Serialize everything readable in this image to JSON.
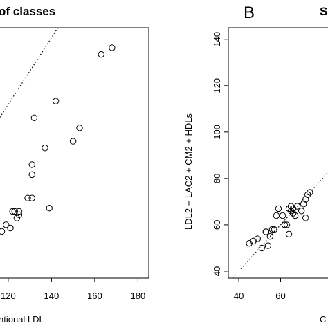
{
  "chart_data": [
    {
      "panel_letter": "",
      "type": "scatter",
      "title": "of classes",
      "xlabel": "ntional LDL",
      "ylabel": "",
      "xlim": [
        113,
        185
      ],
      "ylim": [
        68,
        143
      ],
      "xticks": [
        120,
        140,
        160,
        180
      ],
      "yticks": [],
      "grid": false,
      "reference_line": "dotted y = x",
      "points": [
        {
          "x": 113,
          "y": 77
        },
        {
          "x": 114,
          "y": 79
        },
        {
          "x": 117,
          "y": 82
        },
        {
          "x": 119,
          "y": 84
        },
        {
          "x": 121,
          "y": 83
        },
        {
          "x": 122,
          "y": 88
        },
        {
          "x": 123,
          "y": 88
        },
        {
          "x": 124,
          "y": 86
        },
        {
          "x": 125,
          "y": 87
        },
        {
          "x": 125,
          "y": 88
        },
        {
          "x": 129,
          "y": 92
        },
        {
          "x": 131,
          "y": 92
        },
        {
          "x": 131,
          "y": 99
        },
        {
          "x": 131,
          "y": 102
        },
        {
          "x": 132,
          "y": 116
        },
        {
          "x": 137,
          "y": 107
        },
        {
          "x": 139,
          "y": 89
        },
        {
          "x": 142,
          "y": 121
        },
        {
          "x": 150,
          "y": 109
        },
        {
          "x": 153,
          "y": 113
        },
        {
          "x": 163,
          "y": 135
        },
        {
          "x": 168,
          "y": 137
        }
      ]
    },
    {
      "panel_letter": "B",
      "type": "scatter",
      "title": "S",
      "xlabel": "C",
      "ylabel": "LDL2 + LAC2 + CM2 + HDLs",
      "xlim": [
        35,
        88
      ],
      "ylim": [
        37,
        145
      ],
      "xticks": [
        40,
        60
      ],
      "yticks": [
        40,
        60,
        80,
        100,
        120,
        140
      ],
      "grid": false,
      "reference_line": "dotted y = x",
      "points": [
        {
          "x": 45,
          "y": 52
        },
        {
          "x": 47,
          "y": 53
        },
        {
          "x": 49,
          "y": 54
        },
        {
          "x": 51,
          "y": 50
        },
        {
          "x": 53,
          "y": 57
        },
        {
          "x": 53,
          "y": 57
        },
        {
          "x": 54,
          "y": 51
        },
        {
          "x": 55,
          "y": 55
        },
        {
          "x": 56,
          "y": 58
        },
        {
          "x": 57,
          "y": 58
        },
        {
          "x": 58,
          "y": 64
        },
        {
          "x": 59,
          "y": 67
        },
        {
          "x": 61,
          "y": 64
        },
        {
          "x": 62,
          "y": 60
        },
        {
          "x": 63,
          "y": 60
        },
        {
          "x": 64,
          "y": 56
        },
        {
          "x": 64,
          "y": 67
        },
        {
          "x": 65,
          "y": 66
        },
        {
          "x": 65,
          "y": 68
        },
        {
          "x": 66,
          "y": 65
        },
        {
          "x": 66,
          "y": 67
        },
        {
          "x": 67,
          "y": 64
        },
        {
          "x": 68,
          "y": 68
        },
        {
          "x": 70,
          "y": 66
        },
        {
          "x": 71,
          "y": 69
        },
        {
          "x": 72,
          "y": 71
        },
        {
          "x": 72,
          "y": 63
        },
        {
          "x": 73,
          "y": 73
        },
        {
          "x": 74,
          "y": 74
        }
      ]
    }
  ]
}
